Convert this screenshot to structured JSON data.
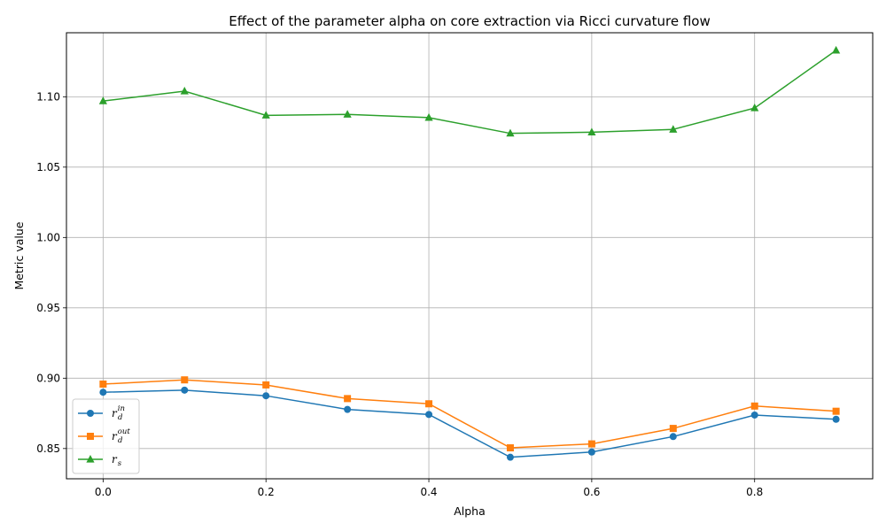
{
  "chart_data": {
    "type": "line",
    "title": "Effect of the parameter alpha on core extraction via Ricci curvature flow",
    "xlabel": "Alpha",
    "ylabel": "Metric value",
    "xlim": [
      -0.045,
      0.945
    ],
    "ylim": [
      0.8285,
      1.1455
    ],
    "xticks": [
      0.0,
      0.2,
      0.4,
      0.6,
      0.8
    ],
    "xtick_labels": [
      "0.0",
      "0.2",
      "0.4",
      "0.6",
      "0.8"
    ],
    "yticks": [
      0.85,
      0.9,
      0.95,
      1.0,
      1.05,
      1.1
    ],
    "ytick_labels": [
      "0.85",
      "0.90",
      "0.95",
      "1.00",
      "1.05",
      "1.10"
    ],
    "grid": true,
    "legend_position": "lower-left",
    "x": [
      0.0,
      0.1,
      0.2,
      0.3,
      0.4,
      0.5,
      0.6,
      0.7,
      0.8,
      0.9
    ],
    "series": [
      {
        "name": "r_d^in",
        "label_base": "r",
        "label_sub": "d",
        "label_sup": "in",
        "color": "#1f77b4",
        "marker": "circle",
        "values": [
          0.89,
          0.8915,
          0.8875,
          0.8778,
          0.8742,
          0.8438,
          0.8475,
          0.8585,
          0.8738,
          0.8708
        ]
      },
      {
        "name": "r_d^out",
        "label_base": "r",
        "label_sub": "d",
        "label_sup": "out",
        "color": "#ff7f0e",
        "marker": "square",
        "values": [
          0.8958,
          0.8988,
          0.8952,
          0.8855,
          0.8818,
          0.8505,
          0.8533,
          0.8643,
          0.8802,
          0.8765
        ]
      },
      {
        "name": "r_s",
        "label_base": "r",
        "label_sub": "s",
        "label_sup": "",
        "color": "#2ca02c",
        "marker": "triangle",
        "values": [
          1.097,
          1.104,
          1.0868,
          1.0875,
          1.0852,
          1.074,
          1.0748,
          1.0768,
          1.092,
          1.133
        ]
      }
    ]
  }
}
